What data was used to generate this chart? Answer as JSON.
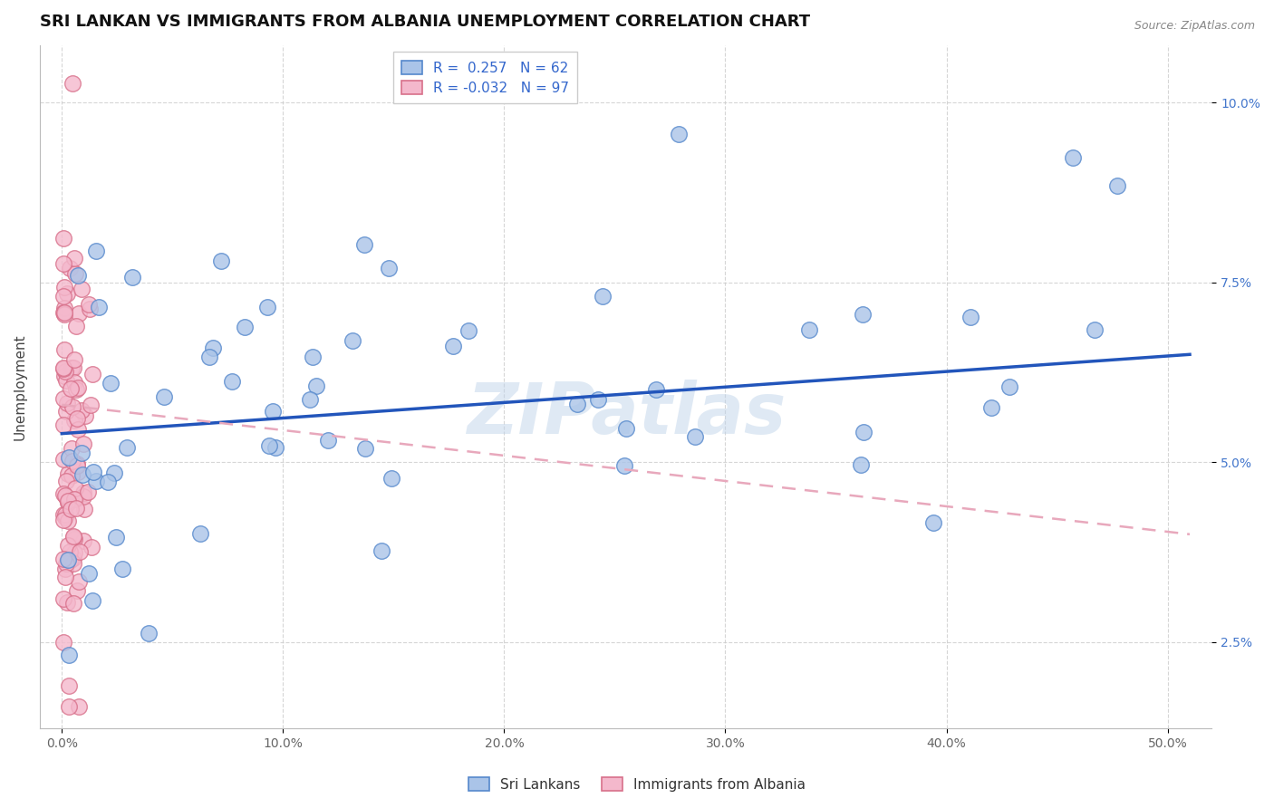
{
  "title": "SRI LANKAN VS IMMIGRANTS FROM ALBANIA UNEMPLOYMENT CORRELATION CHART",
  "source_text": "Source: ZipAtlas.com",
  "ylabel": "Unemployment",
  "xlabel_ticks": [
    "0.0%",
    "10.0%",
    "20.0%",
    "30.0%",
    "40.0%",
    "50.0%"
  ],
  "xlabel_vals": [
    0.0,
    0.1,
    0.2,
    0.3,
    0.4,
    0.5
  ],
  "ylabel_ticks": [
    "2.5%",
    "5.0%",
    "7.5%",
    "10.0%"
  ],
  "ylabel_vals": [
    0.025,
    0.05,
    0.075,
    0.1
  ],
  "xlim": [
    -0.01,
    0.52
  ],
  "ylim": [
    0.013,
    0.108
  ],
  "sri_lankan_color": "#aac4e8",
  "albania_color": "#f4b8cc",
  "sri_lankan_edge": "#5588cc",
  "albania_edge": "#d8708a",
  "sri_lankan_line_color": "#2255bb",
  "albania_line_color": "#e8a8bc",
  "R_sri": 0.257,
  "N_sri": 62,
  "R_alb": -0.032,
  "N_alb": 97,
  "legend_label_sri": "Sri Lankans",
  "legend_label_alb": "Immigrants from Albania",
  "watermark": "ZIPatlas",
  "title_fontsize": 13,
  "legend_fontsize": 11,
  "axis_label_fontsize": 11,
  "tick_fontsize": 10,
  "sri_lankan_line_start_y": 0.054,
  "sri_lankan_line_end_y": 0.065,
  "albania_line_start_y": 0.058,
  "albania_line_end_y": 0.04
}
